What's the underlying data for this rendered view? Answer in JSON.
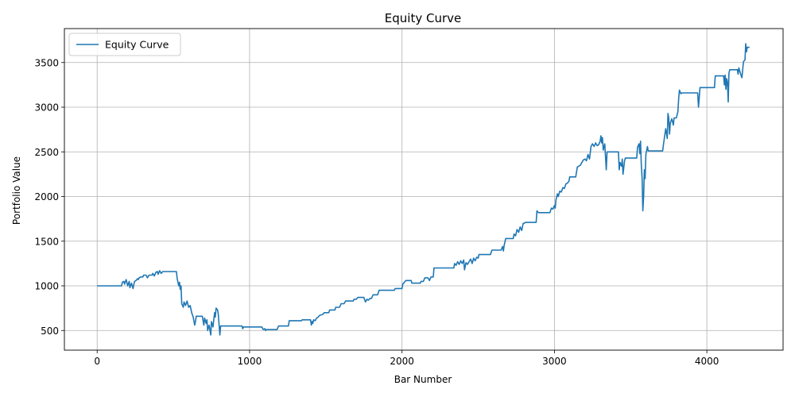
{
  "chart_data": {
    "type": "line",
    "title": "Equity Curve",
    "xlabel": "Bar Number",
    "ylabel": "Portfolio Value",
    "xlim": [
      -215,
      4500
    ],
    "ylim": [
      280,
      3880
    ],
    "xticks": [
      0,
      1000,
      2000,
      3000,
      4000
    ],
    "yticks": [
      500,
      1000,
      1500,
      2000,
      2500,
      3000,
      3500
    ],
    "grid": true,
    "legend_position": "top-left",
    "color": "#1f77b4",
    "series": [
      {
        "name": "Equity Curve",
        "points": [
          [
            0,
            1000
          ],
          [
            160,
            1000
          ],
          [
            165,
            1040
          ],
          [
            175,
            1050
          ],
          [
            180,
            1020
          ],
          [
            190,
            1070
          ],
          [
            200,
            1000
          ],
          [
            210,
            1050
          ],
          [
            215,
            980
          ],
          [
            225,
            1030
          ],
          [
            235,
            970
          ],
          [
            245,
            1050
          ],
          [
            255,
            1060
          ],
          [
            265,
            1080
          ],
          [
            270,
            1070
          ],
          [
            275,
            1090
          ],
          [
            285,
            1100
          ],
          [
            300,
            1100
          ],
          [
            305,
            1120
          ],
          [
            320,
            1120
          ],
          [
            330,
            1090
          ],
          [
            340,
            1120
          ],
          [
            360,
            1120
          ],
          [
            365,
            1140
          ],
          [
            375,
            1110
          ],
          [
            385,
            1150
          ],
          [
            395,
            1160
          ],
          [
            400,
            1130
          ],
          [
            410,
            1170
          ],
          [
            420,
            1140
          ],
          [
            430,
            1160
          ],
          [
            520,
            1160
          ],
          [
            525,
            1080
          ],
          [
            535,
            1000
          ],
          [
            540,
            1040
          ],
          [
            545,
            960
          ],
          [
            550,
            1000
          ],
          [
            555,
            800
          ],
          [
            565,
            760
          ],
          [
            570,
            820
          ],
          [
            580,
            780
          ],
          [
            590,
            830
          ],
          [
            600,
            760
          ],
          [
            610,
            780
          ],
          [
            620,
            700
          ],
          [
            630,
            650
          ],
          [
            640,
            560
          ],
          [
            645,
            600
          ],
          [
            650,
            660
          ],
          [
            690,
            660
          ],
          [
            700,
            560
          ],
          [
            705,
            640
          ],
          [
            715,
            580
          ],
          [
            720,
            620
          ],
          [
            725,
            500
          ],
          [
            735,
            560
          ],
          [
            745,
            450
          ],
          [
            750,
            600
          ],
          [
            760,
            540
          ],
          [
            770,
            700
          ],
          [
            775,
            650
          ],
          [
            780,
            750
          ],
          [
            790,
            730
          ],
          [
            795,
            680
          ],
          [
            800,
            560
          ],
          [
            805,
            450
          ],
          [
            810,
            550
          ],
          [
            950,
            550
          ],
          [
            955,
            520
          ],
          [
            960,
            540
          ],
          [
            1080,
            540
          ],
          [
            1090,
            510
          ],
          [
            1100,
            520
          ],
          [
            1105,
            500
          ],
          [
            1110,
            510
          ],
          [
            1180,
            510
          ],
          [
            1190,
            550
          ],
          [
            1255,
            550
          ],
          [
            1260,
            610
          ],
          [
            1340,
            610
          ],
          [
            1345,
            620
          ],
          [
            1400,
            620
          ],
          [
            1405,
            560
          ],
          [
            1410,
            600
          ],
          [
            1415,
            580
          ],
          [
            1420,
            620
          ],
          [
            1430,
            610
          ],
          [
            1440,
            640
          ],
          [
            1450,
            650
          ],
          [
            1460,
            670
          ],
          [
            1480,
            680
          ],
          [
            1490,
            700
          ],
          [
            1520,
            700
          ],
          [
            1525,
            730
          ],
          [
            1560,
            730
          ],
          [
            1565,
            760
          ],
          [
            1590,
            760
          ],
          [
            1600,
            800
          ],
          [
            1620,
            800
          ],
          [
            1630,
            830
          ],
          [
            1680,
            830
          ],
          [
            1685,
            850
          ],
          [
            1700,
            850
          ],
          [
            1710,
            870
          ],
          [
            1750,
            870
          ],
          [
            1760,
            820
          ],
          [
            1770,
            850
          ],
          [
            1780,
            840
          ],
          [
            1790,
            860
          ],
          [
            1800,
            860
          ],
          [
            1810,
            900
          ],
          [
            1840,
            900
          ],
          [
            1850,
            950
          ],
          [
            1950,
            950
          ],
          [
            1955,
            970
          ],
          [
            2000,
            970
          ],
          [
            2005,
            1020
          ],
          [
            2015,
            1040
          ],
          [
            2025,
            1060
          ],
          [
            2060,
            1060
          ],
          [
            2065,
            1030
          ],
          [
            2120,
            1030
          ],
          [
            2125,
            1050
          ],
          [
            2140,
            1050
          ],
          [
            2150,
            1090
          ],
          [
            2170,
            1090
          ],
          [
            2180,
            1060
          ],
          [
            2190,
            1100
          ],
          [
            2205,
            1100
          ],
          [
            2210,
            1200
          ],
          [
            2340,
            1200
          ],
          [
            2345,
            1250
          ],
          [
            2355,
            1230
          ],
          [
            2365,
            1270
          ],
          [
            2375,
            1240
          ],
          [
            2385,
            1280
          ],
          [
            2395,
            1250
          ],
          [
            2405,
            1290
          ],
          [
            2410,
            1180
          ],
          [
            2420,
            1260
          ],
          [
            2430,
            1240
          ],
          [
            2440,
            1270
          ],
          [
            2450,
            1300
          ],
          [
            2460,
            1250
          ],
          [
            2470,
            1310
          ],
          [
            2480,
            1280
          ],
          [
            2490,
            1320
          ],
          [
            2500,
            1310
          ],
          [
            2505,
            1350
          ],
          [
            2580,
            1350
          ],
          [
            2590,
            1400
          ],
          [
            2650,
            1400
          ],
          [
            2660,
            1440
          ],
          [
            2665,
            1390
          ],
          [
            2670,
            1450
          ],
          [
            2680,
            1530
          ],
          [
            2730,
            1530
          ],
          [
            2735,
            1580
          ],
          [
            2745,
            1560
          ],
          [
            2755,
            1630
          ],
          [
            2765,
            1600
          ],
          [
            2775,
            1660
          ],
          [
            2785,
            1620
          ],
          [
            2795,
            1700
          ],
          [
            2800,
            1700
          ],
          [
            2810,
            1710
          ],
          [
            2880,
            1710
          ],
          [
            2885,
            1840
          ],
          [
            2895,
            1820
          ],
          [
            2970,
            1820
          ],
          [
            2980,
            1870
          ],
          [
            2990,
            1860
          ],
          [
            3000,
            1900
          ],
          [
            3005,
            1870
          ],
          [
            3010,
            1960
          ],
          [
            3020,
            2030
          ],
          [
            3025,
            2000
          ],
          [
            3035,
            2060
          ],
          [
            3045,
            2050
          ],
          [
            3055,
            2100
          ],
          [
            3065,
            2090
          ],
          [
            3075,
            2140
          ],
          [
            3085,
            2150
          ],
          [
            3095,
            2170
          ],
          [
            3100,
            2220
          ],
          [
            3140,
            2220
          ],
          [
            3150,
            2330
          ],
          [
            3170,
            2350
          ],
          [
            3180,
            2380
          ],
          [
            3190,
            2410
          ],
          [
            3200,
            2420
          ],
          [
            3210,
            2400
          ],
          [
            3220,
            2470
          ],
          [
            3230,
            2420
          ],
          [
            3240,
            2560
          ],
          [
            3250,
            2590
          ],
          [
            3260,
            2560
          ],
          [
            3270,
            2600
          ],
          [
            3280,
            2570
          ],
          [
            3290,
            2580
          ],
          [
            3300,
            2620
          ],
          [
            3305,
            2680
          ],
          [
            3310,
            2600
          ],
          [
            3315,
            2660
          ],
          [
            3320,
            2520
          ],
          [
            3330,
            2590
          ],
          [
            3340,
            2300
          ],
          [
            3345,
            2500
          ],
          [
            3420,
            2500
          ],
          [
            3425,
            2300
          ],
          [
            3430,
            2380
          ],
          [
            3440,
            2340
          ],
          [
            3445,
            2420
          ],
          [
            3450,
            2250
          ],
          [
            3460,
            2400
          ],
          [
            3465,
            2430
          ],
          [
            3540,
            2430
          ],
          [
            3545,
            2550
          ],
          [
            3555,
            2590
          ],
          [
            3560,
            2480
          ],
          [
            3565,
            2620
          ],
          [
            3570,
            2350
          ],
          [
            3575,
            2200
          ],
          [
            3580,
            1840
          ],
          [
            3585,
            2000
          ],
          [
            3590,
            2300
          ],
          [
            3595,
            2200
          ],
          [
            3600,
            2470
          ],
          [
            3610,
            2560
          ],
          [
            3615,
            2510
          ],
          [
            3710,
            2510
          ],
          [
            3715,
            2580
          ],
          [
            3725,
            2700
          ],
          [
            3730,
            2760
          ],
          [
            3740,
            2650
          ],
          [
            3745,
            2930
          ],
          [
            3750,
            2880
          ],
          [
            3755,
            2700
          ],
          [
            3760,
            2820
          ],
          [
            3770,
            2870
          ],
          [
            3780,
            2800
          ],
          [
            3785,
            2880
          ],
          [
            3800,
            2880
          ],
          [
            3810,
            2950
          ],
          [
            3815,
            3100
          ],
          [
            3820,
            3190
          ],
          [
            3830,
            3150
          ],
          [
            3835,
            3160
          ],
          [
            3940,
            3160
          ],
          [
            3945,
            3000
          ],
          [
            3950,
            3100
          ],
          [
            3955,
            3220
          ],
          [
            4050,
            3220
          ],
          [
            4055,
            3350
          ],
          [
            4110,
            3350
          ],
          [
            4115,
            3250
          ],
          [
            4120,
            3360
          ],
          [
            4125,
            3200
          ],
          [
            4130,
            3320
          ],
          [
            4135,
            3280
          ],
          [
            4140,
            3060
          ],
          [
            4145,
            3380
          ],
          [
            4150,
            3420
          ],
          [
            4200,
            3420
          ],
          [
            4205,
            3370
          ],
          [
            4210,
            3440
          ],
          [
            4220,
            3380
          ],
          [
            4230,
            3330
          ],
          [
            4240,
            3510
          ],
          [
            4250,
            3530
          ],
          [
            4255,
            3710
          ],
          [
            4260,
            3620
          ],
          [
            4265,
            3670
          ],
          [
            4280,
            3670
          ]
        ]
      }
    ]
  }
}
